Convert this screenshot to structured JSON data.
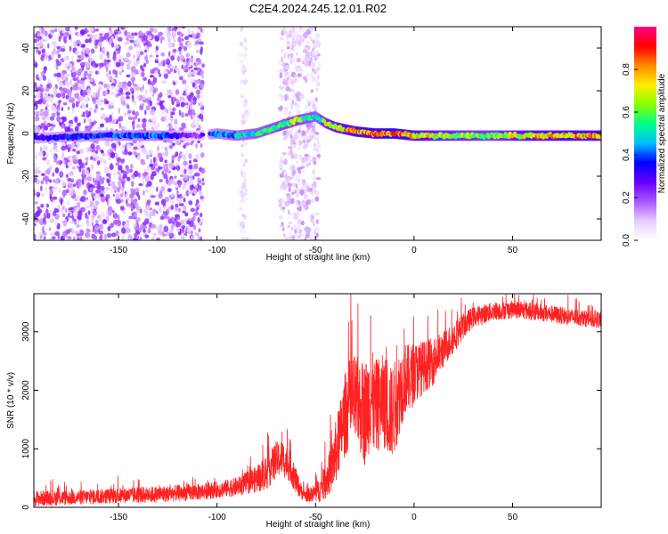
{
  "title": "C2E4.2024.245.12.01.R02",
  "chart_data": [
    {
      "type": "heatmap",
      "xlabel": "Height of straight line (km)",
      "ylabel": "Frequency (Hz)",
      "xlim": [
        -193,
        95
      ],
      "ylim": [
        -50,
        50
      ],
      "x_ticks": [
        "-150",
        "-100",
        "-50",
        "0",
        "50"
      ],
      "x_tick_values": [
        -150,
        -100,
        -50,
        0,
        50
      ],
      "y_ticks": [
        "-40",
        "-20",
        "0",
        "20",
        "40"
      ],
      "y_tick_values": [
        -40,
        -20,
        0,
        20,
        40
      ],
      "colorbar": {
        "label": "Normalized spectral amplitude",
        "range": [
          0,
          1
        ],
        "ticks": [
          "0.0",
          "0.2",
          "0.4",
          "0.6",
          "0.8"
        ],
        "tick_values": [
          0.0,
          0.2,
          0.4,
          0.6,
          0.8
        ],
        "colors": [
          "#ffffff",
          "#e6ccff",
          "#aa55ff",
          "#6600ff",
          "#0000ff",
          "#00bfff",
          "#00ff88",
          "#88ff00",
          "#ffee00",
          "#ff8800",
          "#ff0000",
          "#ff0088"
        ]
      },
      "ridge": {
        "x": [
          -190,
          -160,
          -130,
          -110,
          -100,
          -90,
          -80,
          -70,
          -60,
          -55,
          -50,
          -45,
          -40,
          -30,
          -20,
          -10,
          0,
          20,
          40,
          60,
          95
        ],
        "y": [
          -2,
          -1,
          -1,
          -1,
          0,
          -1,
          0,
          3,
          6,
          7,
          8,
          5,
          3,
          1,
          0,
          0,
          -1,
          -1,
          -1,
          -1,
          -1
        ],
        "amplitude": [
          0.35,
          0.4,
          0.45,
          0.2,
          0.45,
          0.5,
          0.55,
          0.6,
          0.65,
          0.6,
          0.55,
          0.7,
          0.75,
          0.85,
          0.9,
          0.95,
          0.8,
          0.7,
          0.65,
          0.8,
          0.85
        ]
      },
      "noise_regions": [
        {
          "x": [
            -193,
            -107
          ],
          "amplitude": 0.25
        },
        {
          "x": [
            -88,
            -85
          ],
          "amplitude": 0.1
        },
        {
          "x": [
            -68,
            -48
          ],
          "amplitude": 0.15
        }
      ]
    },
    {
      "type": "line",
      "xlabel": "Height of straight line (km)",
      "ylabel": "SNR (10 * v/v)",
      "xlim": [
        -193,
        95
      ],
      "ylim": [
        0,
        3650
      ],
      "x_ticks": [
        "-150",
        "-100",
        "-50",
        "0",
        "50"
      ],
      "x_tick_values": [
        -150,
        -100,
        -50,
        0,
        50
      ],
      "y_ticks": [
        "0",
        "1000",
        "2000",
        "3000"
      ],
      "y_tick_values": [
        0,
        1000,
        2000,
        3000
      ],
      "line_color": "#ff2222",
      "series": [
        {
          "x": [
            -193,
            -170,
            -150,
            -130,
            -110,
            -100,
            -90,
            -80,
            -75,
            -70,
            -67,
            -63,
            -60,
            -57,
            -55,
            -52,
            -50,
            -47,
            -45,
            -42,
            -40,
            -37,
            -35,
            -32,
            -30,
            -27,
            -25,
            -22,
            -20,
            -17,
            -15,
            -12,
            -10,
            -7,
            -5,
            -2,
            0,
            5,
            10,
            15,
            20,
            25,
            30,
            40,
            50,
            60,
            70,
            80,
            95
          ],
          "y": [
            150,
            170,
            200,
            220,
            260,
            300,
            350,
            480,
            600,
            800,
            850,
            700,
            450,
            260,
            200,
            220,
            250,
            320,
            450,
            650,
            900,
            1300,
            1600,
            1800,
            1800,
            1700,
            1600,
            1900,
            1700,
            1800,
            1800,
            1600,
            1700,
            2000,
            2200,
            2200,
            2300,
            2400,
            2500,
            2700,
            2900,
            3100,
            3250,
            3350,
            3380,
            3350,
            3300,
            3250,
            3200
          ],
          "amplitude": [
            150,
            140,
            150,
            160,
            160,
            160,
            180,
            250,
            350,
            350,
            350,
            300,
            250,
            140,
            120,
            150,
            200,
            250,
            350,
            450,
            600,
            700,
            800,
            900,
            900,
            900,
            1000,
            1000,
            900,
            900,
            900,
            900,
            900,
            800,
            700,
            650,
            600,
            500,
            450,
            350,
            300,
            250,
            200,
            180,
            170,
            170,
            170,
            160,
            160
          ]
        }
      ],
      "spikes": [
        {
          "x": -67,
          "y": 1290
        },
        {
          "x": -22,
          "y": 3280
        },
        {
          "x": -5,
          "y": 3050
        },
        {
          "x": 30,
          "y": 3500
        },
        {
          "x": 45,
          "y": 3600
        },
        {
          "x": 60,
          "y": 3550
        }
      ]
    }
  ]
}
